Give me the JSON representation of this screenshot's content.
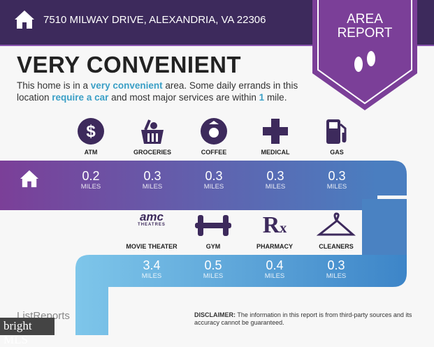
{
  "header": {
    "address": "7510 MILWAY DRIVE, ALEXANDRIA, VA 22306",
    "badge_line1": "AREA",
    "badge_line2": "REPORT"
  },
  "title": "VERY CONVENIENT",
  "description": {
    "p1": "This home is in a ",
    "h1": "very convenient",
    "p2": " area. Some daily errands in this location ",
    "h2": "require a car",
    "p3": " and most major services are within ",
    "h3": "1",
    "p4": " mile."
  },
  "row1": [
    {
      "label": "ATM",
      "value": "0.2",
      "unit": "MILES",
      "icon": "dollar-icon"
    },
    {
      "label": "GROCERIES",
      "value": "0.3",
      "unit": "MILES",
      "icon": "basket-icon"
    },
    {
      "label": "COFFEE",
      "value": "0.3",
      "unit": "MILES",
      "icon": "starbucks-icon"
    },
    {
      "label": "MEDICAL",
      "value": "0.3",
      "unit": "MILES",
      "icon": "cross-icon"
    },
    {
      "label": "GAS",
      "value": "0.3",
      "unit": "MILES",
      "icon": "gas-pump-icon"
    }
  ],
  "row2": [
    {
      "label": "MOVIE THEATER",
      "value": "3.4",
      "unit": "MILES",
      "icon": "amc-logo",
      "logo_text": "amc",
      "logo_sub": "THEATRES"
    },
    {
      "label": "GYM",
      "value": "0.5",
      "unit": "MILES",
      "icon": "dumbbell-icon"
    },
    {
      "label": "PHARMACY",
      "value": "0.4",
      "unit": "MILES",
      "icon": "rx-icon"
    },
    {
      "label": "CLEANERS",
      "value": "0.3",
      "unit": "MILES",
      "icon": "hanger-icon"
    }
  ],
  "footer": {
    "disclaimer_label": "DISCLAIMER:",
    "disclaimer": " The information in this report is from third-party sources and its accuracy cannot be guaranteed.",
    "brand": "ListReports",
    "watermark": "bright MLS"
  },
  "colors": {
    "header": "#3d2a5c",
    "accent": "#7b3f98",
    "highlight": "#3a9fc6",
    "icon": "#3d2a5c"
  }
}
